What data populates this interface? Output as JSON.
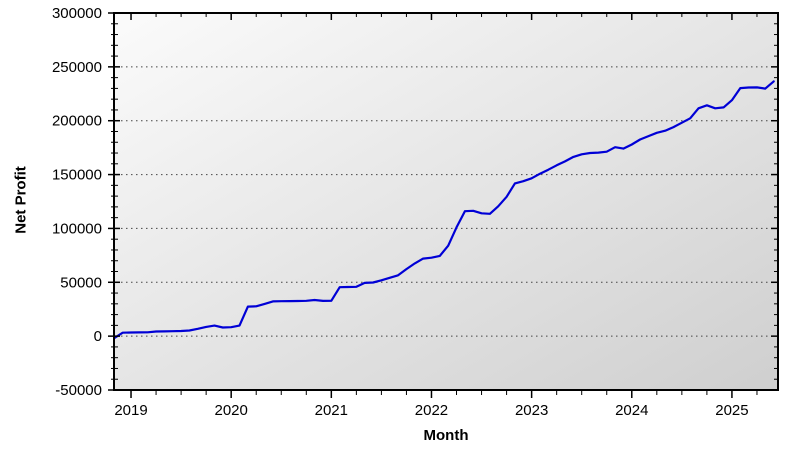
{
  "page": {
    "background": "#ffffff"
  },
  "chart_data": {
    "type": "line",
    "title": "",
    "xlabel": "Month",
    "ylabel": "Net Profit",
    "legend_position": "none",
    "grid": {
      "horizontal_dotted": true,
      "vertical": false
    },
    "ylim": [
      -50000,
      300000
    ],
    "ytick_values": [
      300000,
      250000,
      200000,
      150000,
      100000,
      50000,
      0,
      -50000
    ],
    "ytick_labels": [
      "300000",
      "250000",
      "200000",
      "150000",
      "100000",
      "50000",
      "0",
      "-50000"
    ],
    "yminor_step": 10000,
    "x_time_range": [
      2018.83,
      2025.46
    ],
    "xtick_years": [
      2019,
      2020,
      2021,
      2022,
      2023,
      2024,
      2025
    ],
    "xtick_labels": [
      "2019",
      "2020",
      "2021",
      "2022",
      "2023",
      "2024",
      "2025"
    ],
    "xminor_step_years": 0.25,
    "colors": {
      "line": "#0000d6",
      "grid_dots": "#444444",
      "axis": "#000000",
      "text": "#000000",
      "plot_bg_top_left": "#fbfbfb",
      "plot_bg_bottom_right": "#cfcfcf"
    },
    "series": [
      {
        "name": "Net Profit",
        "months": [
          "2018-11",
          "2018-12",
          "2019-01",
          "2019-02",
          "2019-03",
          "2019-04",
          "2019-05",
          "2019-06",
          "2019-07",
          "2019-08",
          "2019-09",
          "2019-10",
          "2019-11",
          "2019-12",
          "2020-01",
          "2020-02",
          "2020-03",
          "2020-04",
          "2020-05",
          "2020-06",
          "2020-07",
          "2020-08",
          "2020-09",
          "2020-10",
          "2020-11",
          "2020-12",
          "2021-01",
          "2021-02",
          "2021-03",
          "2021-04",
          "2021-05",
          "2021-06",
          "2021-07",
          "2021-08",
          "2021-09",
          "2021-10",
          "2021-11",
          "2021-12",
          "2022-01",
          "2022-02",
          "2022-03",
          "2022-04",
          "2022-05",
          "2022-06",
          "2022-07",
          "2022-08",
          "2022-09",
          "2022-10",
          "2022-11",
          "2022-12",
          "2023-01",
          "2023-02",
          "2023-03",
          "2023-04",
          "2023-05",
          "2023-06",
          "2023-07",
          "2023-08",
          "2023-09",
          "2023-10",
          "2023-11",
          "2023-12",
          "2024-01",
          "2024-02",
          "2024-03",
          "2024-04",
          "2024-05",
          "2024-06",
          "2024-07",
          "2024-08",
          "2024-09",
          "2024-10",
          "2024-11",
          "2024-12",
          "2025-01",
          "2025-02",
          "2025-03",
          "2025-04",
          "2025-05",
          "2025-06"
        ],
        "values": [
          -1800,
          3200,
          3400,
          3500,
          3600,
          4300,
          4400,
          4600,
          4800,
          5200,
          6800,
          8600,
          9800,
          8000,
          8300,
          9800,
          27400,
          27700,
          29900,
          32300,
          32400,
          32500,
          32600,
          32800,
          33600,
          32700,
          32800,
          45400,
          45600,
          45800,
          49400,
          49800,
          51800,
          54200,
          56500,
          62200,
          67500,
          72000,
          72800,
          74500,
          84000,
          101000,
          116000,
          116400,
          114000,
          113600,
          120500,
          129400,
          141800,
          143800,
          146500,
          150800,
          154500,
          158600,
          162200,
          166400,
          168800,
          170000,
          170400,
          171200,
          175400,
          174100,
          177900,
          182600,
          185700,
          188800,
          190700,
          194100,
          198200,
          202200,
          211500,
          214300,
          211500,
          212400,
          219000,
          230300,
          230800,
          230900,
          229800,
          236500
        ]
      }
    ]
  }
}
